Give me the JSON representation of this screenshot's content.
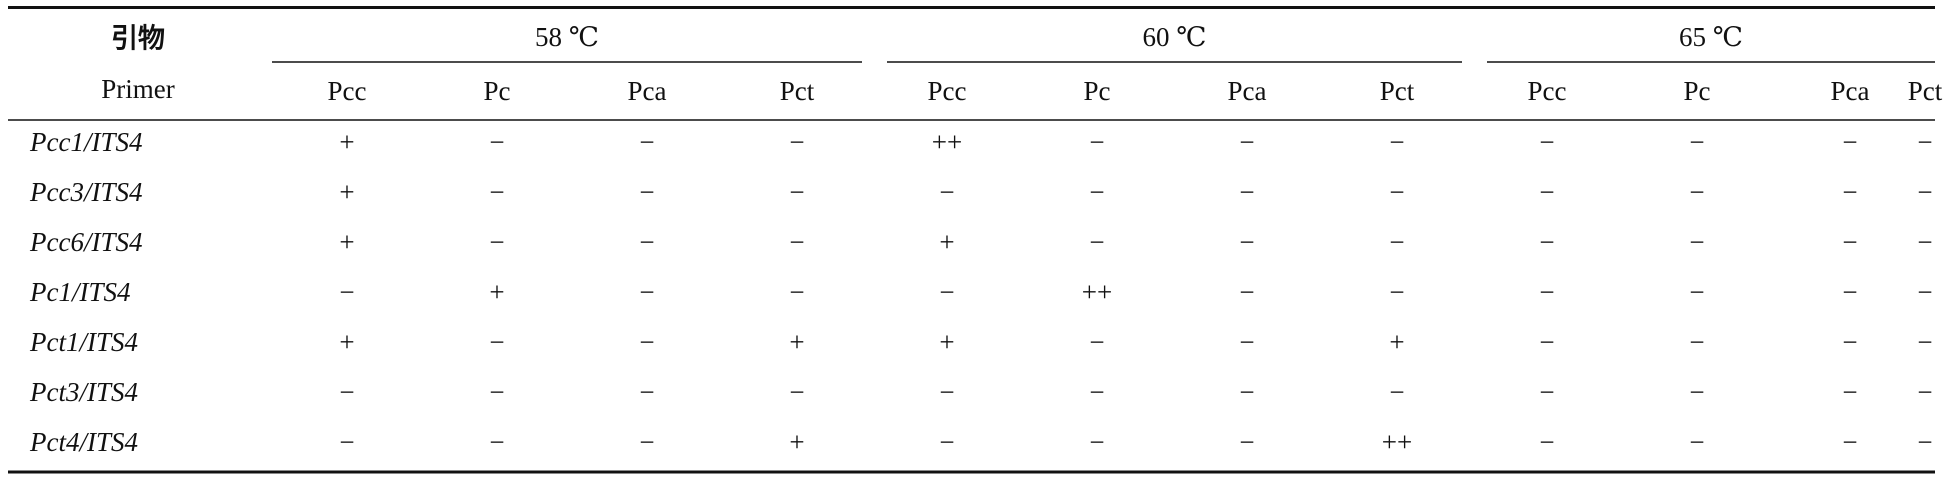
{
  "header": {
    "primer_cn": "引物",
    "primer_en": "Primer",
    "groups": [
      {
        "label": "58 ℃",
        "columns": [
          "Pcc",
          "Pc",
          "Pca",
          "Pct"
        ]
      },
      {
        "label": "60 ℃",
        "columns": [
          "Pcc",
          "Pc",
          "Pca",
          "Pct"
        ]
      },
      {
        "label": "65 ℃",
        "columns": [
          "Pcc",
          "Pc",
          "Pca",
          "Pct"
        ]
      }
    ]
  },
  "table": {
    "rows": [
      {
        "primer": "Pcc1/ITS4",
        "cells": [
          "+",
          "−",
          "−",
          "−",
          "++",
          "−",
          "−",
          "−",
          "−",
          "−",
          "−",
          "−"
        ]
      },
      {
        "primer": "Pcc3/ITS4",
        "cells": [
          "+",
          "−",
          "−",
          "−",
          "−",
          "−",
          "−",
          "−",
          "−",
          "−",
          "−",
          "−"
        ]
      },
      {
        "primer": "Pcc6/ITS4",
        "cells": [
          "+",
          "−",
          "−",
          "−",
          "+",
          "−",
          "−",
          "−",
          "−",
          "−",
          "−",
          "−"
        ]
      },
      {
        "primer": "Pc1/ITS4",
        "cells": [
          "−",
          "+",
          "−",
          "−",
          "−",
          "++",
          "−",
          "−",
          "−",
          "−",
          "−",
          "−"
        ]
      },
      {
        "primer": "Pct1/ITS4",
        "cells": [
          "+",
          "−",
          "−",
          "+",
          "+",
          "−",
          "−",
          "+",
          "−",
          "−",
          "−",
          "−"
        ]
      },
      {
        "primer": "Pct3/ITS4",
        "cells": [
          "−",
          "−",
          "−",
          "−",
          "−",
          "−",
          "−",
          "−",
          "−",
          "−",
          "−",
          "−"
        ]
      },
      {
        "primer": "Pct4/ITS4",
        "cells": [
          "−",
          "−",
          "−",
          "+",
          "−",
          "−",
          "−",
          "++",
          "−",
          "−",
          "−",
          "−"
        ]
      }
    ]
  }
}
